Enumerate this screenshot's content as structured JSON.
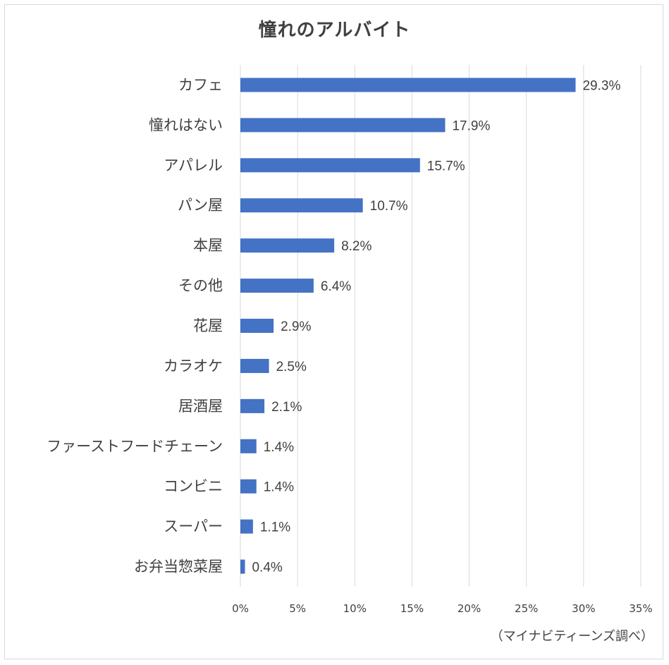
{
  "chart_data": {
    "type": "bar",
    "orientation": "horizontal",
    "title": "憧れのアルバイト",
    "categories": [
      "カフェ",
      "憧れはない",
      "アパレル",
      "パン屋",
      "本屋",
      "その他",
      "花屋",
      "カラオケ",
      "居酒屋",
      "ファーストフードチェーン",
      "コンビニ",
      "スーパー",
      "お弁当惣菜屋"
    ],
    "values": [
      29.3,
      17.9,
      15.7,
      10.7,
      8.2,
      6.4,
      2.9,
      2.5,
      2.1,
      1.4,
      1.4,
      1.1,
      0.4
    ],
    "value_labels": [
      "29.3%",
      "17.9%",
      "15.7%",
      "10.7%",
      "8.2%",
      "6.4%",
      "2.9%",
      "2.5%",
      "2.1%",
      "1.4%",
      "1.4%",
      "1.1%",
      "0.4%"
    ],
    "x_ticks": [
      0,
      5,
      10,
      15,
      20,
      25,
      30,
      35
    ],
    "x_tick_labels": [
      "0%",
      "5%",
      "10%",
      "15%",
      "20%",
      "25%",
      "30%",
      "35%"
    ],
    "xlim": [
      0,
      35
    ],
    "grid": true,
    "bar_color": "#4472c4",
    "source_note": "（マイナビティーンズ調べ）"
  }
}
